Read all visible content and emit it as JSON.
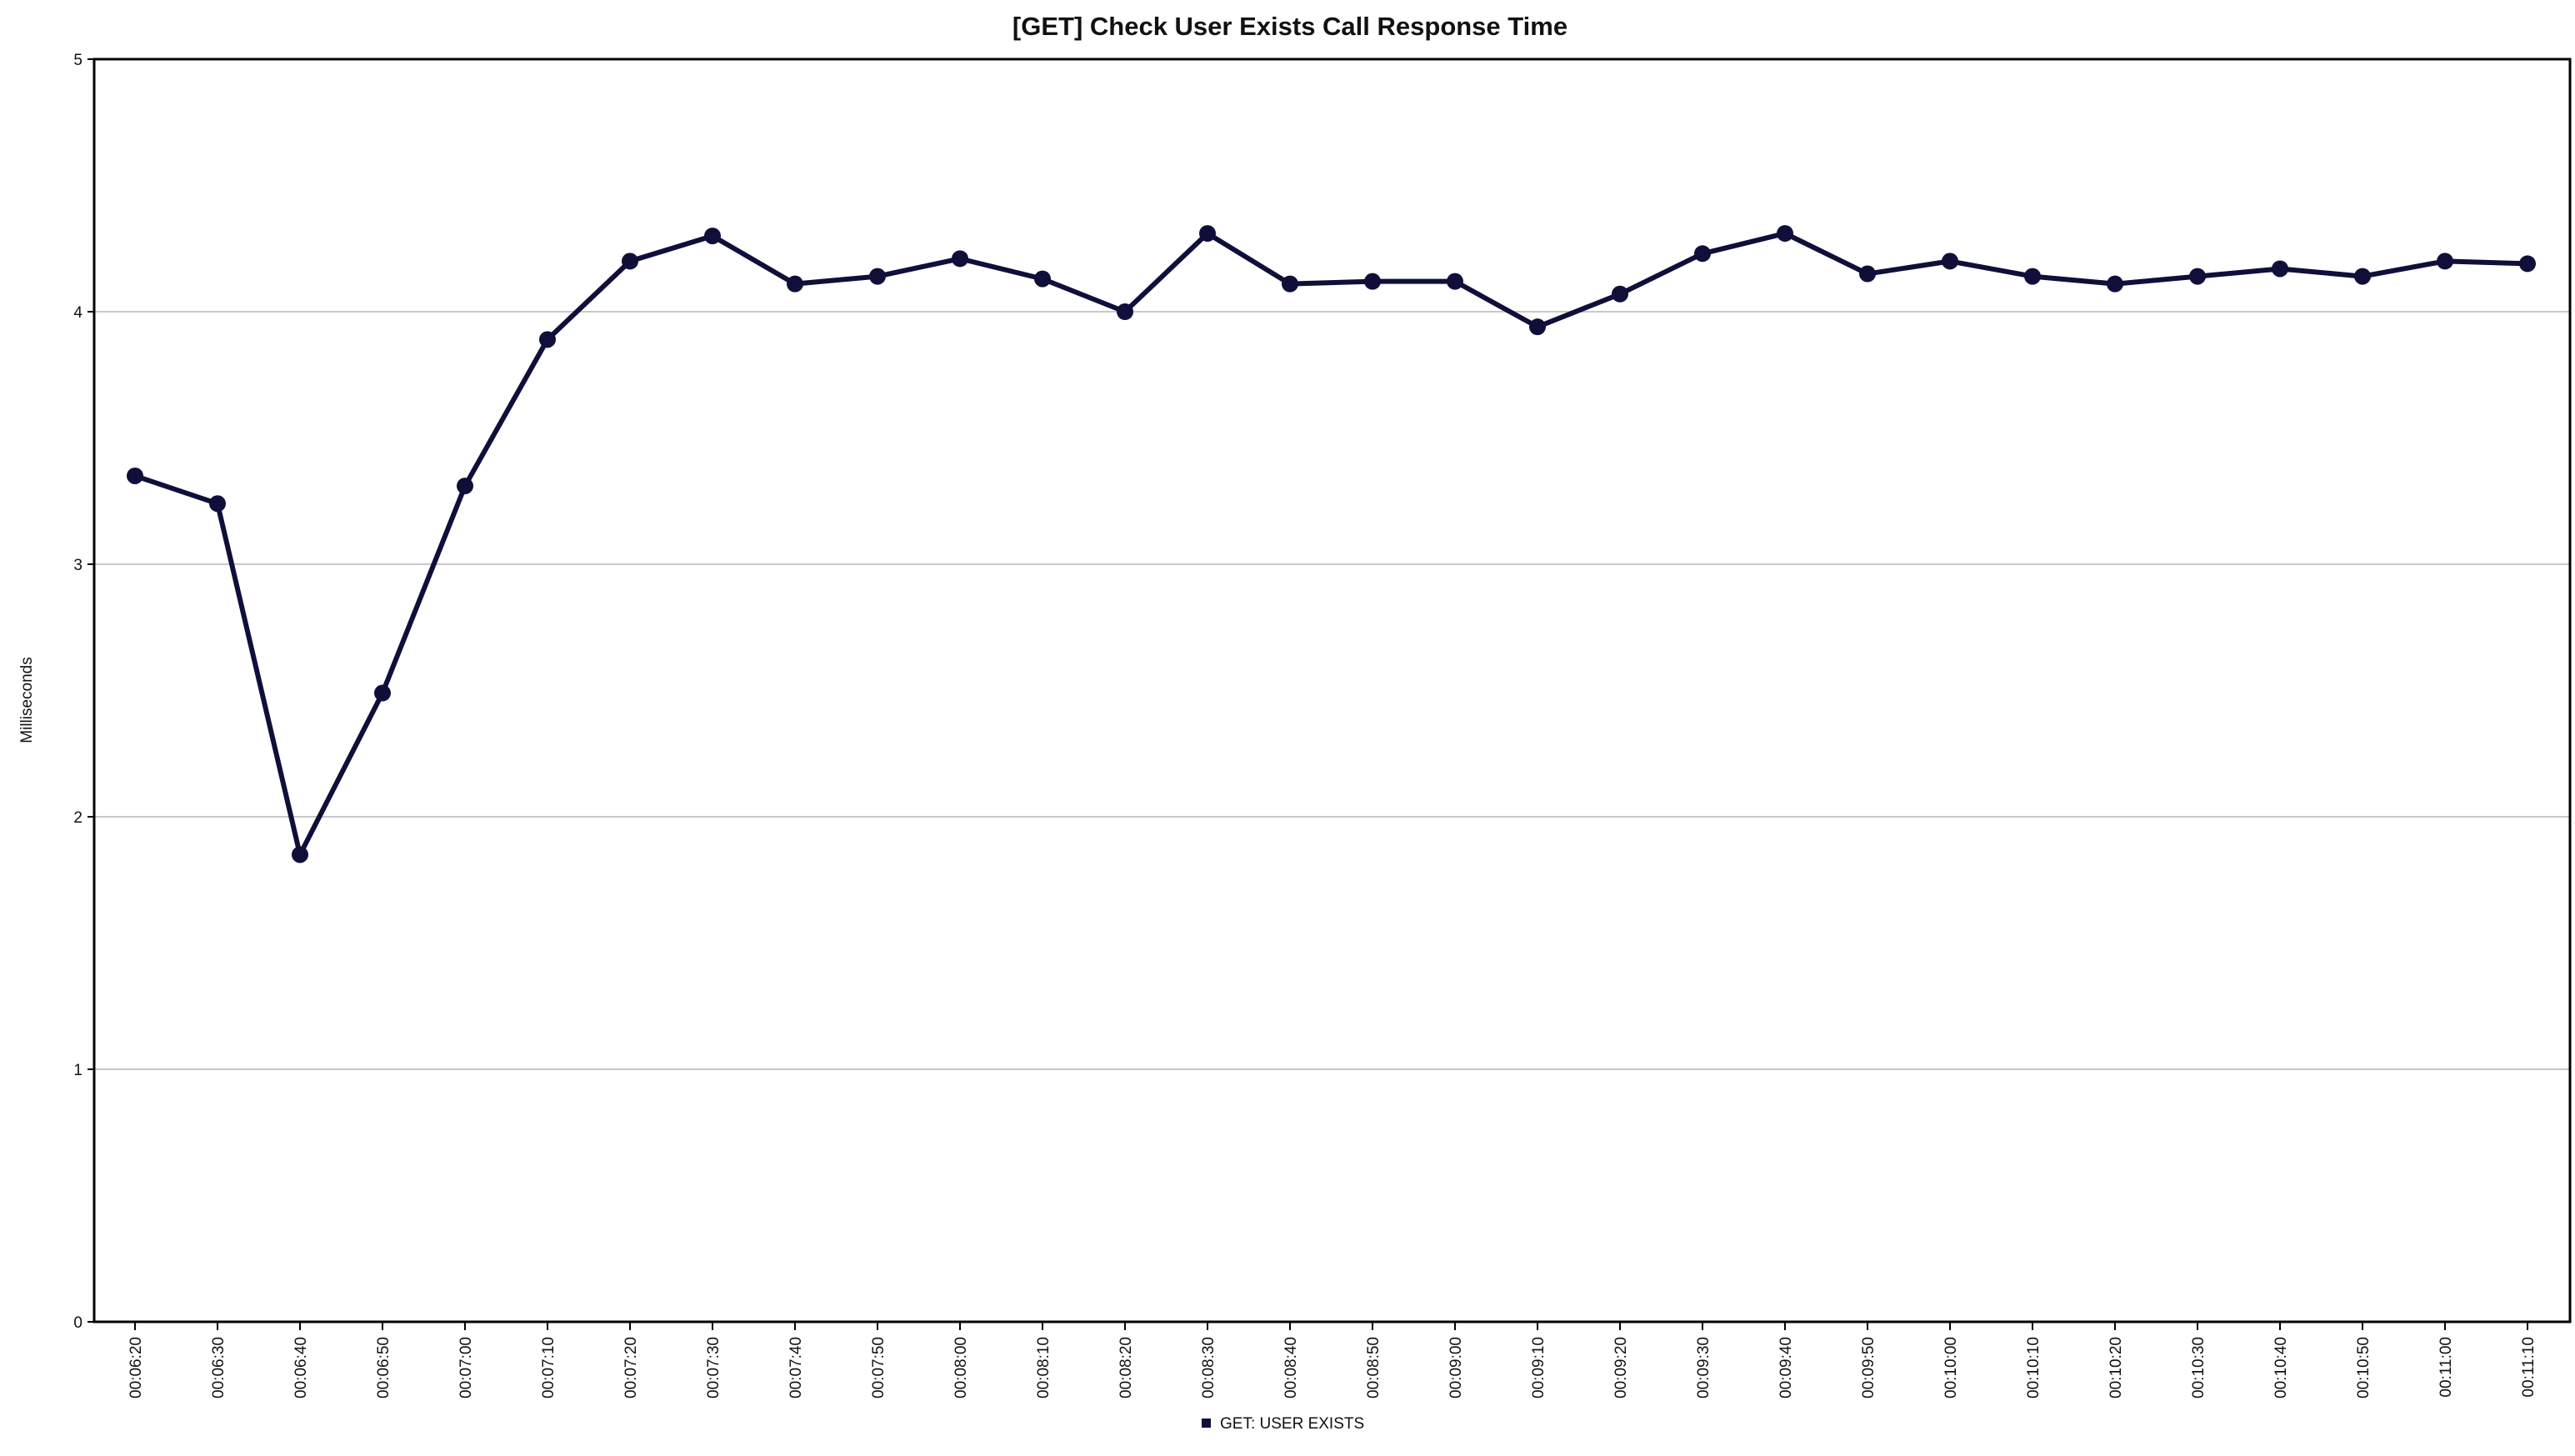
{
  "chart_data": {
    "type": "line",
    "title": "[GET] Check User Exists Call Response Time",
    "xlabel": "",
    "ylabel": "Milliseconds",
    "ylim": [
      0,
      5
    ],
    "yticks": [
      "0",
      "1",
      "2",
      "3",
      "4",
      "5"
    ],
    "grid": true,
    "legend_position": "bottom-center",
    "x": [
      "00:06:20",
      "00:06:30",
      "00:06:40",
      "00:06:50",
      "00:07:00",
      "00:07:10",
      "00:07:20",
      "00:07:30",
      "00:07:40",
      "00:07:50",
      "00:08:00",
      "00:08:10",
      "00:08:20",
      "00:08:30",
      "00:08:40",
      "00:08:50",
      "00:09:00",
      "00:09:10",
      "00:09:20",
      "00:09:30",
      "00:09:40",
      "00:09:50",
      "00:10:00",
      "00:10:10",
      "00:10:20",
      "00:10:30",
      "00:10:40",
      "00:10:50",
      "00:11:00",
      "00:11:10"
    ],
    "series": [
      {
        "name": "GET: USER EXISTS",
        "color": "#0f0f3a",
        "values": [
          3.35,
          3.24,
          1.85,
          2.49,
          3.31,
          3.89,
          4.2,
          4.3,
          4.11,
          4.14,
          4.21,
          4.13,
          4.0,
          4.31,
          4.11,
          4.12,
          4.12,
          3.94,
          4.07,
          4.23,
          4.31,
          4.15,
          4.2,
          4.14,
          4.11,
          4.14,
          4.17,
          4.14,
          4.2,
          4.19
        ]
      }
    ]
  },
  "colors": {
    "series": "#0f0f3a",
    "grid": "#c8c8c8",
    "axis": "#000000"
  }
}
